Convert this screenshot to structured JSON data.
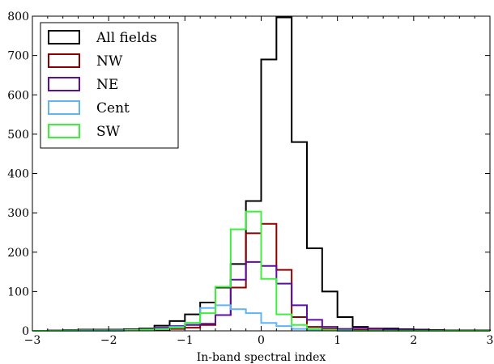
{
  "chart_data": {
    "type": "histogram",
    "title": "",
    "xlabel": "In-band spectral index",
    "ylabel": "",
    "xlim": [
      -3,
      3
    ],
    "ylim": [
      0,
      800
    ],
    "grid": false,
    "legend_position": "top-left",
    "x_ticks": [
      {
        "value": -3,
        "label": "−3"
      },
      {
        "value": -2,
        "label": "−2"
      },
      {
        "value": -1,
        "label": "−1"
      },
      {
        "value": 0,
        "label": "0"
      },
      {
        "value": 1,
        "label": "1"
      },
      {
        "value": 2,
        "label": "2"
      },
      {
        "value": 3,
        "label": "3"
      }
    ],
    "y_ticks": [
      {
        "value": 0,
        "label": "0"
      },
      {
        "value": 100,
        "label": "100"
      },
      {
        "value": 200,
        "label": "200"
      },
      {
        "value": 300,
        "label": "300"
      },
      {
        "value": 400,
        "label": "400"
      },
      {
        "value": 500,
        "label": "500"
      },
      {
        "value": 600,
        "label": "600"
      },
      {
        "value": 700,
        "label": "700"
      },
      {
        "value": 800,
        "label": "800"
      }
    ],
    "bin_edges": [
      -3.0,
      -2.8,
      -2.6,
      -2.4,
      -2.2,
      -2.0,
      -1.8,
      -1.6,
      -1.4,
      -1.2,
      -1.0,
      -0.8,
      -0.6,
      -0.4,
      -0.2,
      0.0,
      0.2,
      0.4,
      0.6,
      0.8,
      1.0,
      1.2,
      1.4,
      1.6,
      1.8,
      2.0,
      2.2,
      2.4,
      2.6,
      2.8,
      3.0
    ],
    "series": [
      {
        "name": "All fields",
        "color": "#000000",
        "values": [
          0,
          1,
          2,
          3,
          3,
          3,
          4,
          6,
          13,
          25,
          42,
          72,
          110,
          170,
          330,
          690,
          797,
          480,
          210,
          100,
          35,
          10,
          6,
          6,
          4,
          3,
          2,
          1,
          1,
          1
        ]
      },
      {
        "name": "NW",
        "color": "#8b0000",
        "values": [
          0,
          0,
          1,
          1,
          1,
          1,
          1,
          2,
          3,
          5,
          8,
          15,
          40,
          110,
          248,
          272,
          155,
          35,
          10,
          5,
          2,
          2,
          1,
          1,
          1,
          0,
          0,
          0,
          0,
          0
        ]
      },
      {
        "name": "NE",
        "color": "#5a0fa0",
        "values": [
          0,
          1,
          1,
          2,
          2,
          2,
          3,
          4,
          8,
          12,
          15,
          18,
          40,
          130,
          175,
          165,
          120,
          65,
          28,
          10,
          5,
          7,
          6,
          3,
          2,
          1,
          1,
          0,
          0,
          0
        ]
      },
      {
        "name": "Cent",
        "color": "#5fb4f5",
        "values": [
          0,
          0,
          0,
          0,
          0,
          0,
          1,
          2,
          4,
          10,
          20,
          58,
          65,
          55,
          45,
          20,
          12,
          5,
          2,
          1,
          0,
          0,
          0,
          0,
          0,
          0,
          0,
          0,
          0,
          0
        ]
      },
      {
        "name": "SW",
        "color": "#3cf03c",
        "values": [
          0,
          0,
          1,
          1,
          1,
          1,
          2,
          3,
          5,
          8,
          20,
          45,
          112,
          258,
          303,
          132,
          42,
          15,
          5,
          2,
          1,
          0,
          0,
          0,
          0,
          0,
          0,
          0,
          0,
          0
        ]
      }
    ]
  }
}
